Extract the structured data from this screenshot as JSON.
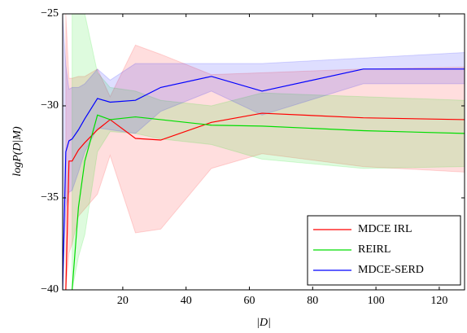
{
  "chart_data": {
    "type": "line",
    "xlabel": "|D|",
    "ylabel": "logP(D|M)",
    "x": [
      1,
      2,
      3,
      4,
      6,
      8,
      12,
      16,
      24,
      32,
      48,
      64,
      96,
      128
    ],
    "series": [
      {
        "name": "MDCE IRL",
        "color": "#ff0000",
        "values": [
          null,
          -40,
          -33.0,
          -33.0,
          -32.4,
          -32.0,
          -31.3,
          -30.75,
          -31.77,
          -31.86,
          -30.9,
          -30.4,
          -30.65,
          -30.75
        ],
        "upper": [
          null,
          -25,
          -28.5,
          -28.5,
          -28.4,
          -28.4,
          -28.0,
          -29.5,
          -26.7,
          -27.2,
          -28.3,
          -28.2,
          -28.0,
          -27.9
        ],
        "lower": [
          null,
          -40,
          -38.0,
          -37.5,
          -36.0,
          -35.6,
          -34.8,
          -32.7,
          -36.9,
          -36.7,
          -33.4,
          -32.6,
          -33.3,
          -33.6
        ]
      },
      {
        "name": "REIRL",
        "color": "#00dd00",
        "values": [
          null,
          null,
          null,
          -40,
          -35.5,
          -33.0,
          -30.5,
          -30.75,
          -30.6,
          -30.75,
          -31.05,
          -31.1,
          -31.35,
          -31.5
        ],
        "upper": [
          null,
          null,
          null,
          -25,
          -25,
          -25,
          -28.2,
          -29.0,
          -29.2,
          -29.7,
          -30.0,
          -29.3,
          -29.5,
          -29.7
        ],
        "lower": [
          null,
          null,
          null,
          -40,
          -38.2,
          -37.0,
          -32.5,
          -31.4,
          -31.5,
          -31.8,
          -32.1,
          -32.9,
          -33.4,
          -33.3
        ]
      },
      {
        "name": "MDCE-SERD",
        "color": "#0000ff",
        "values": [
          -40,
          -32.5,
          -31.9,
          -31.8,
          -31.3,
          -30.7,
          -29.6,
          -29.8,
          -29.7,
          -29.0,
          -28.4,
          -29.2,
          -28.0,
          -28.0
        ],
        "upper": [
          -25,
          -27.8,
          -29.1,
          -29.0,
          -29.0,
          -28.8,
          -28.0,
          -28.6,
          -27.7,
          -27.7,
          -27.7,
          -27.7,
          -27.4,
          -27.1
        ],
        "lower": [
          -40,
          -35.5,
          -34.7,
          -34.6,
          -33.6,
          -32.5,
          -31.2,
          -31.3,
          -31.5,
          -30.3,
          -29.2,
          -30.5,
          -28.8,
          -28.8
        ]
      }
    ],
    "xlim": [
      1,
      128
    ],
    "xticks": [
      20,
      40,
      60,
      80,
      100,
      120
    ],
    "ylim": [
      -40,
      -25
    ],
    "yticks": [
      {
        "value": -40,
        "label": "−40"
      },
      {
        "value": -35,
        "label": "−35"
      },
      {
        "value": -30,
        "label": "−30"
      },
      {
        "value": -25,
        "label": "−25"
      }
    ],
    "legend": "lower right"
  }
}
